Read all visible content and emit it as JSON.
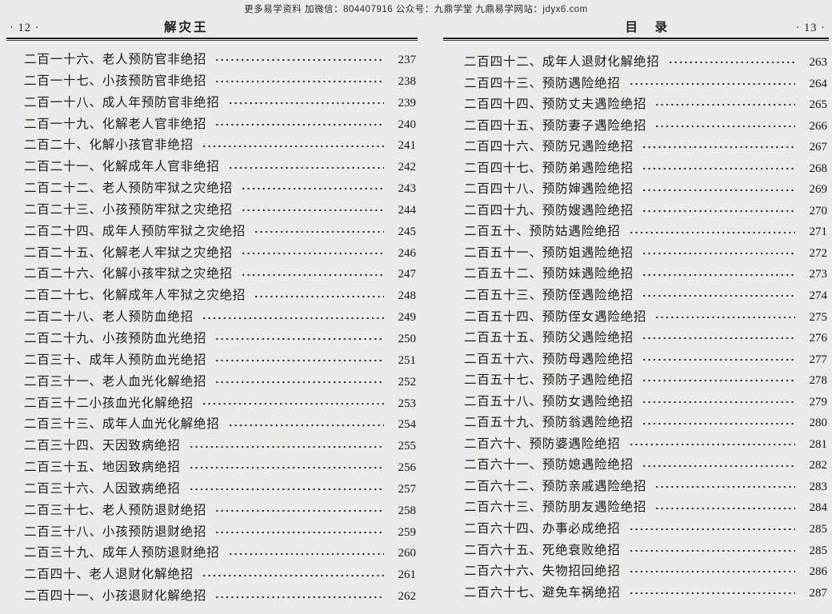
{
  "watermark": "更多易学资料 加微信：804407916 公众号：九鼎学堂 九鼎易学网站：jdyx6.com",
  "left_page": {
    "folio": "· 12 ·",
    "running_title": "解灾王",
    "entries": [
      {
        "title": "二百一十六、老人预防官非绝招",
        "page": "237"
      },
      {
        "title": "二百一十七、小孩预防官非绝招",
        "page": "238"
      },
      {
        "title": "二百一十八、成人年预防官非绝招",
        "page": "239"
      },
      {
        "title": "二百一十九、化解老人官非绝招",
        "page": "240"
      },
      {
        "title": "二百二十、化解小孩官非绝招",
        "page": "241"
      },
      {
        "title": "二百二十一、化解成年人官非绝招",
        "page": "242"
      },
      {
        "title": "二百二十二、老人预防牢狱之灾绝招",
        "page": "243"
      },
      {
        "title": "二百二十三、小孩预防牢狱之灾绝招",
        "page": "244"
      },
      {
        "title": "二百二十四、成年人预防牢狱之灾绝招",
        "page": "245"
      },
      {
        "title": "二百二十五、化解老人牢狱之灾绝招",
        "page": "246"
      },
      {
        "title": "二百二十六、化解小孩牢狱之灾绝招",
        "page": "247"
      },
      {
        "title": "二百二十七、化解成年人牢狱之灾绝招",
        "page": "248"
      },
      {
        "title": "二百二十八、老人预防血绝招",
        "page": "249"
      },
      {
        "title": "二百二十九、小孩预防血光绝招",
        "page": "250"
      },
      {
        "title": "二百三十、成年人预防血光绝招",
        "page": "251"
      },
      {
        "title": "二百三十一、老人血光化解绝招",
        "page": "252"
      },
      {
        "title": "二百三十二小孩血光化解绝招",
        "page": "253"
      },
      {
        "title": "二百三十三、成年人血光化解绝招",
        "page": "254"
      },
      {
        "title": "二百三十四、天因致病绝招",
        "page": "255"
      },
      {
        "title": "二百三十五、地因致病绝招",
        "page": "256"
      },
      {
        "title": "二百三十六、人因致病绝招",
        "page": "257"
      },
      {
        "title": "二百三十七、老人预防退财绝招",
        "page": "258"
      },
      {
        "title": "二百三十八、小孩预防退财绝招",
        "page": "259"
      },
      {
        "title": "二百三十九、成年人预防退财绝招",
        "page": "260"
      },
      {
        "title": "二百四十、老人退财化解绝招",
        "page": "261"
      },
      {
        "title": "二百四十一、小孩退财化解绝招",
        "page": "262"
      }
    ]
  },
  "right_page": {
    "folio": "· 13 ·",
    "running_title": "目　录",
    "entries": [
      {
        "title": "二百四十二、成年人退财化解绝招",
        "page": "263"
      },
      {
        "title": "二百四十三、预防遇险绝招",
        "page": "264"
      },
      {
        "title": "二百四十四、预防丈夫遇险绝招",
        "page": "265"
      },
      {
        "title": "二百四十五、预防妻子遇险绝招",
        "page": "266"
      },
      {
        "title": "二百四十六、预防兄遇险绝招",
        "page": "267"
      },
      {
        "title": "二百四十七、预防弟遇险绝招",
        "page": "268"
      },
      {
        "title": "二百四十八、预防婶遇险绝招",
        "page": "269"
      },
      {
        "title": "二百四十九、预防嫂遇险绝招",
        "page": "270"
      },
      {
        "title": "二百五十、预防姑遇险绝招",
        "page": "271"
      },
      {
        "title": "二百五十一、预防姐遇险绝招",
        "page": "272"
      },
      {
        "title": "二百五十二、预防妹遇险绝招",
        "page": "273"
      },
      {
        "title": "二百五十三、预防侄遇险绝招",
        "page": "274"
      },
      {
        "title": "二百五十四、预防侄女遇险绝招",
        "page": "275"
      },
      {
        "title": "二百五十五、预防父遇险绝招",
        "page": "276"
      },
      {
        "title": "二百五十六、预防母遇险绝招",
        "page": "277"
      },
      {
        "title": "二百五十七、预防子遇险绝招",
        "page": "278"
      },
      {
        "title": "二百五十八、预防女遇险绝招",
        "page": "279"
      },
      {
        "title": "二百五十九、预防翁遇险绝招",
        "page": "280"
      },
      {
        "title": "二百六十、预防婆遇险绝招",
        "page": "281"
      },
      {
        "title": "二百六十一、预防媳遇险绝招",
        "page": "282"
      },
      {
        "title": "二百六十二、预防亲戚遇险绝招",
        "page": "283"
      },
      {
        "title": "二百六十三、预防朋友遇险绝招",
        "page": "284"
      },
      {
        "title": "二百六十四、办事必成绝招",
        "page": "285"
      },
      {
        "title": "二百六十五、死绝衰败绝招",
        "page": "285"
      },
      {
        "title": "二百六十六、失物招回绝招",
        "page": "286"
      },
      {
        "title": "二百六十七、避免车祸绝招",
        "page": "287"
      }
    ]
  }
}
